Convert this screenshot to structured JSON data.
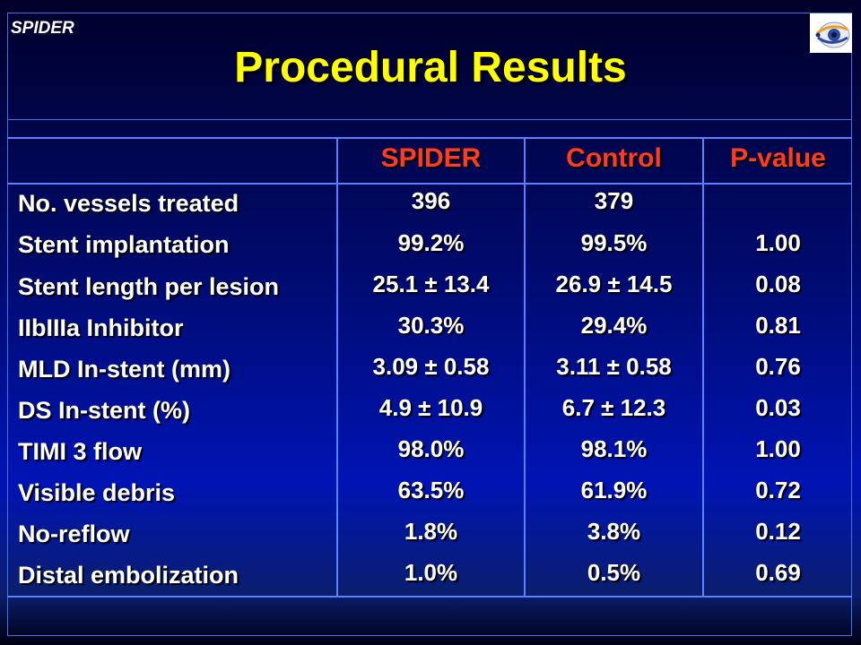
{
  "slide": {
    "brand": "SPIDER",
    "title": "Procedural Results"
  },
  "table": {
    "columns": [
      "SPIDER",
      "Control",
      "P-value"
    ],
    "rows": [
      {
        "label": "No. vessels treated",
        "spider": "396",
        "control": "379",
        "pvalue": ""
      },
      {
        "label": "Stent implantation",
        "spider": "99.2%",
        "control": "99.5%",
        "pvalue": "1.00"
      },
      {
        "label": "Stent length per lesion",
        "spider": "25.1 ± 13.4",
        "control": "26.9 ± 14.5",
        "pvalue": "0.08"
      },
      {
        "label": "IIbIIIa Inhibitor",
        "spider": "30.3%",
        "control": "29.4%",
        "pvalue": "0.81"
      },
      {
        "label": "MLD In-stent (mm)",
        "spider": "3.09 ± 0.58",
        "control": "3.11 ± 0.58",
        "pvalue": "0.76"
      },
      {
        "label": "DS In-stent (%)",
        "spider": "4.9 ± 10.9",
        "control": "6.7 ± 12.3",
        "pvalue": "0.03"
      },
      {
        "label": "TIMI 3 flow",
        "spider": "98.0%",
        "control": "98.1%",
        "pvalue": "1.00"
      },
      {
        "label": "Visible debris",
        "spider": "63.5%",
        "control": "61.9%",
        "pvalue": "0.72"
      },
      {
        "label": "No-reflow",
        "spider": "1.8%",
        "control": "3.8%",
        "pvalue": "0.12"
      },
      {
        "label": "Distal embolization",
        "spider": "1.0%",
        "control": "0.5%",
        "pvalue": "0.69"
      }
    ]
  },
  "colors": {
    "title": "#ffff00",
    "column_header": "#ff3c1e",
    "grid_line": "#5a82ff"
  },
  "icons": [
    "eye-logo-icon"
  ]
}
